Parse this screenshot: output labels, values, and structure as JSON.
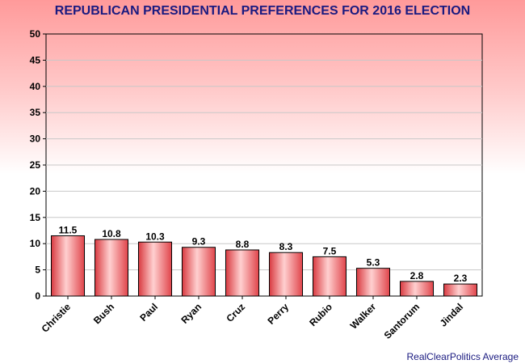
{
  "chart_data": {
    "type": "bar",
    "title": "REPUBLICAN PRESIDENTIAL PREFERENCES FOR 2016 ELECTION",
    "categories": [
      "Christie",
      "Bush",
      "Paul",
      "Ryan",
      "Cruz",
      "Perry",
      "Rubio",
      "Walker",
      "Santorum",
      "Jindal"
    ],
    "values": [
      11.5,
      10.8,
      10.3,
      9.3,
      8.8,
      8.3,
      7.5,
      5.3,
      2.8,
      2.3
    ],
    "value_labels": [
      "11.5",
      "10.8",
      "10.3",
      "9.3",
      "8.8",
      "8.3",
      "7.5",
      "5.3",
      "2.8",
      "2.3"
    ],
    "ylim": [
      0,
      50
    ],
    "yticks": [
      0,
      5,
      10,
      15,
      20,
      25,
      30,
      35,
      40,
      45,
      50
    ],
    "xlabel": "",
    "ylabel": "",
    "grid": true,
    "legend": "none",
    "bar_color": "#e8474c",
    "bar_highlight": "#ffd0d0",
    "source": "RealClearPolitics Average"
  }
}
